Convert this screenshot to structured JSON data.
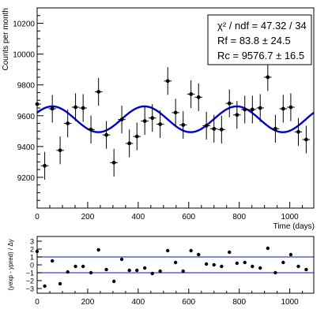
{
  "chart_data": [
    {
      "type": "scatter",
      "ylabel": "Counts per month",
      "xlabel": "Time (days)",
      "xlim": [
        0,
        1095
      ],
      "ylim": [
        9000,
        10300
      ],
      "xticks": [
        0,
        200,
        400,
        600,
        800,
        1000
      ],
      "yticks": [
        9200,
        9400,
        9600,
        9800,
        10000,
        10200
      ],
      "xtick_labels": [
        "0",
        "200",
        "400",
        "600",
        "800",
        "1000"
      ],
      "ytick_labels": [
        "9200",
        "9400",
        "9600",
        "9800",
        "10000",
        "10200"
      ],
      "legend": {
        "placement": "top-right",
        "chi2_text": "χ² / ndf = 47.32 / 34",
        "rf_text": "Rf = 83.8 ± 24.5",
        "rc_text": "Rc = 9576.7 ± 16.5"
      },
      "fit": {
        "Rc": 9576.7,
        "Rf": 83.8,
        "period_days": 365,
        "phase_days": 60,
        "color": "#0000cc"
      },
      "series": [
        {
          "points": [
            {
              "x": 0,
              "y": 9675,
              "err": 140
            },
            {
              "x": 30,
              "y": 9275,
              "err": 90
            },
            {
              "x": 60,
              "y": 9645,
              "err": 90
            },
            {
              "x": 91,
              "y": 9375,
              "err": 90
            },
            {
              "x": 121,
              "y": 9550,
              "err": 90
            },
            {
              "x": 152,
              "y": 9655,
              "err": 90
            },
            {
              "x": 182,
              "y": 9650,
              "err": 90
            },
            {
              "x": 213,
              "y": 9510,
              "err": 90
            },
            {
              "x": 243,
              "y": 9755,
              "err": 90
            },
            {
              "x": 274,
              "y": 9475,
              "err": 90
            },
            {
              "x": 304,
              "y": 9295,
              "err": 90
            },
            {
              "x": 335,
              "y": 9575,
              "err": 90
            },
            {
              "x": 365,
              "y": 9420,
              "err": 90
            },
            {
              "x": 395,
              "y": 9465,
              "err": 90
            },
            {
              "x": 426,
              "y": 9565,
              "err": 90
            },
            {
              "x": 456,
              "y": 9585,
              "err": 90
            },
            {
              "x": 487,
              "y": 9545,
              "err": 90
            },
            {
              "x": 517,
              "y": 9825,
              "err": 90
            },
            {
              "x": 548,
              "y": 9620,
              "err": 90
            },
            {
              "x": 578,
              "y": 9540,
              "err": 90
            },
            {
              "x": 609,
              "y": 9740,
              "err": 90
            },
            {
              "x": 639,
              "y": 9720,
              "err": 90
            },
            {
              "x": 670,
              "y": 9535,
              "err": 90
            },
            {
              "x": 700,
              "y": 9515,
              "err": 90
            },
            {
              "x": 730,
              "y": 9510,
              "err": 90
            },
            {
              "x": 761,
              "y": 9680,
              "err": 90
            },
            {
              "x": 791,
              "y": 9605,
              "err": 90
            },
            {
              "x": 822,
              "y": 9640,
              "err": 90
            },
            {
              "x": 852,
              "y": 9640,
              "err": 90
            },
            {
              "x": 883,
              "y": 9650,
              "err": 90
            },
            {
              "x": 913,
              "y": 9850,
              "err": 90
            },
            {
              "x": 943,
              "y": 9515,
              "err": 90
            },
            {
              "x": 974,
              "y": 9645,
              "err": 90
            },
            {
              "x": 1004,
              "y": 9655,
              "err": 90
            },
            {
              "x": 1034,
              "y": 9495,
              "err": 90
            },
            {
              "x": 1065,
              "y": 9445,
              "err": 90
            }
          ]
        }
      ]
    },
    {
      "type": "scatter",
      "ylabel": "(yexp - ypred) / Δy",
      "xlim": [
        0,
        1095
      ],
      "ylim": [
        -3.6,
        3.6
      ],
      "xticks": [
        0,
        200,
        400,
        600,
        800,
        1000
      ],
      "yticks": [
        -3,
        -2,
        -1,
        0,
        1,
        2,
        3
      ],
      "xtick_labels": [
        "0",
        "200",
        "400",
        "600",
        "800",
        "1000"
      ],
      "ytick_labels": [
        "−3",
        "−2",
        "−1",
        "0",
        "1",
        "2",
        "3"
      ],
      "hlines": [
        1,
        -1
      ],
      "hline_color": "#3344cc",
      "series": [
        {
          "points": [
            {
              "x": 0,
              "y": 1.7
            },
            {
              "x": 30,
              "y": -2.7
            },
            {
              "x": 60,
              "y": 0.5
            },
            {
              "x": 91,
              "y": -2.4
            },
            {
              "x": 121,
              "y": -0.9
            },
            {
              "x": 152,
              "y": -0.2
            },
            {
              "x": 182,
              "y": -0.2
            },
            {
              "x": 213,
              "y": -1.0
            },
            {
              "x": 243,
              "y": 1.9
            },
            {
              "x": 274,
              "y": -0.6
            },
            {
              "x": 304,
              "y": -2.1
            },
            {
              "x": 335,
              "y": 0.7
            },
            {
              "x": 365,
              "y": -0.7
            },
            {
              "x": 395,
              "y": -0.7
            },
            {
              "x": 426,
              "y": -0.4
            },
            {
              "x": 456,
              "y": -1.1
            },
            {
              "x": 487,
              "y": -0.8
            },
            {
              "x": 517,
              "y": 1.8
            },
            {
              "x": 548,
              "y": 0.3
            },
            {
              "x": 578,
              "y": -0.8
            },
            {
              "x": 609,
              "y": 1.8
            },
            {
              "x": 639,
              "y": 1.3
            },
            {
              "x": 670,
              "y": 0.1
            },
            {
              "x": 700,
              "y": 0.0
            },
            {
              "x": 730,
              "y": -0.2
            },
            {
              "x": 761,
              "y": 1.6
            },
            {
              "x": 791,
              "y": 0.2
            },
            {
              "x": 822,
              "y": 0.3
            },
            {
              "x": 852,
              "y": -0.2
            },
            {
              "x": 883,
              "y": -0.4
            },
            {
              "x": 913,
              "y": 2.1
            },
            {
              "x": 943,
              "y": -1.0
            },
            {
              "x": 974,
              "y": 0.3
            },
            {
              "x": 1004,
              "y": 1.3
            },
            {
              "x": 1034,
              "y": -0.2
            },
            {
              "x": 1065,
              "y": -0.6
            }
          ]
        }
      ]
    }
  ]
}
